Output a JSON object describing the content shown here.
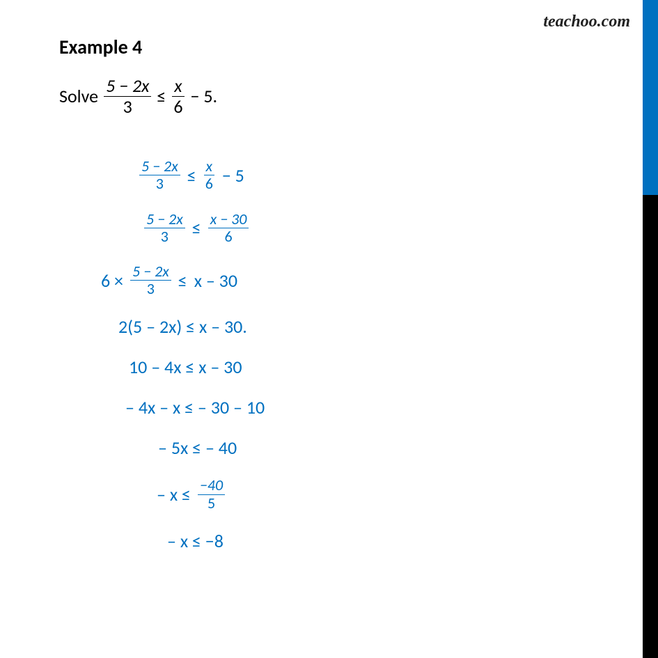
{
  "watermark": "teachoo.com",
  "title_text": "Example 4",
  "title_fontsize": 28,
  "problem": {
    "prefix": "Solve",
    "frac1_num": "5 − 2x",
    "frac1_den": "3",
    "rel": "≤",
    "frac2_num": "x",
    "frac2_den": "6",
    "suffix": " − 5.",
    "fontsize": 26,
    "color": "#000000"
  },
  "steps": [
    {
      "type": "fracfrac",
      "lnum": "5 − 2x",
      "lden": "3",
      "rel": "≤",
      "rnum": "x",
      "rden": "6",
      "rtail": " − 5",
      "indent": 75
    },
    {
      "type": "fracfrac2",
      "lnum": "5 − 2x",
      "lden": "3",
      "rel": "≤",
      "rnum": "x  − 30",
      "rden": "6",
      "indent": 82
    },
    {
      "type": "prefrac",
      "pre": "6 × ",
      "lnum": "5 − 2x",
      "lden": "3",
      "rel": " ≤ ",
      "right": " x – 30",
      "indent": 20
    },
    {
      "type": "plain",
      "text": "2(5 – 2x) ≤ x – 30.",
      "indent": 45
    },
    {
      "type": "plain",
      "text": "10 – 4x ≤  x – 30",
      "indent": 60
    },
    {
      "type": "plain",
      "text": "– 4x – x ≤   – 30 – 10",
      "indent": 55
    },
    {
      "type": "plain",
      "text": "– 5x ≤   – 40",
      "indent": 102
    },
    {
      "type": "tailfrac",
      "left": "– x ≤  ",
      "rnum": "−40",
      "rden": "5",
      "indent": 100
    },
    {
      "type": "plain",
      "text": "– x ≤  −8",
      "indent": 115
    }
  ],
  "step_fontsize": 26,
  "step_fontsize_small": 22,
  "step_color": "#0070c0",
  "sidebar_top_color": "#0070c0",
  "sidebar_bottom_color": "#000000",
  "background": "#ffffff"
}
